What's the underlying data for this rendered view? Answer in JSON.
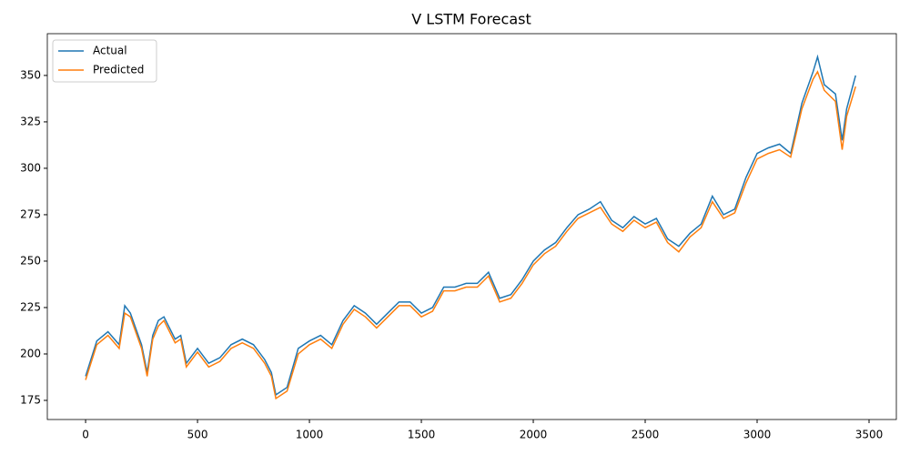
{
  "chart_data": {
    "type": "line",
    "title": "V LSTM Forecast",
    "x": [
      0,
      50,
      100,
      150,
      175,
      200,
      250,
      275,
      300,
      325,
      350,
      400,
      425,
      450,
      500,
      550,
      600,
      650,
      700,
      750,
      800,
      830,
      850,
      900,
      950,
      1000,
      1050,
      1100,
      1150,
      1200,
      1250,
      1300,
      1350,
      1400,
      1450,
      1500,
      1550,
      1600,
      1650,
      1700,
      1750,
      1800,
      1850,
      1900,
      1950,
      2000,
      2050,
      2100,
      2150,
      2200,
      2250,
      2300,
      2350,
      2400,
      2450,
      2500,
      2550,
      2600,
      2650,
      2700,
      2750,
      2800,
      2850,
      2900,
      2950,
      3000,
      3050,
      3100,
      3150,
      3200,
      3250,
      3270,
      3300,
      3350,
      3380,
      3400,
      3440
    ],
    "series": [
      {
        "name": "Actual",
        "color": "#1f77b4",
        "values": [
          188,
          207,
          212,
          205,
          226,
          222,
          205,
          190,
          210,
          218,
          220,
          208,
          210,
          195,
          203,
          195,
          198,
          205,
          208,
          205,
          197,
          190,
          178,
          182,
          203,
          207,
          210,
          205,
          218,
          226,
          222,
          216,
          222,
          228,
          228,
          222,
          225,
          236,
          236,
          238,
          238,
          244,
          230,
          232,
          240,
          250,
          256,
          260,
          268,
          275,
          278,
          282,
          272,
          268,
          274,
          270,
          273,
          262,
          258,
          265,
          270,
          285,
          275,
          278,
          295,
          308,
          311,
          313,
          308,
          335,
          352,
          360,
          345,
          340,
          315,
          332,
          350
        ]
      },
      {
        "name": "Predicted",
        "color": "#ff7f0e",
        "values": [
          186,
          205,
          210,
          203,
          222,
          220,
          203,
          188,
          208,
          215,
          218,
          206,
          208,
          193,
          201,
          193,
          196,
          203,
          206,
          203,
          195,
          188,
          176,
          180,
          200,
          205,
          208,
          203,
          216,
          224,
          220,
          214,
          220,
          226,
          226,
          220,
          223,
          234,
          234,
          236,
          236,
          242,
          228,
          230,
          238,
          248,
          254,
          258,
          266,
          273,
          276,
          279,
          270,
          266,
          272,
          268,
          271,
          260,
          255,
          263,
          268,
          282,
          273,
          276,
          292,
          305,
          308,
          310,
          306,
          332,
          348,
          352,
          342,
          336,
          310,
          328,
          344
        ]
      }
    ],
    "xlim": [
      -171,
      3622
    ],
    "ylim": [
      164.7,
      372.5
    ],
    "xticks": [
      0,
      500,
      1000,
      1500,
      2000,
      2500,
      3000,
      3500
    ],
    "yticks": [
      175,
      200,
      225,
      250,
      275,
      300,
      325,
      350
    ],
    "legend": "upper left"
  }
}
